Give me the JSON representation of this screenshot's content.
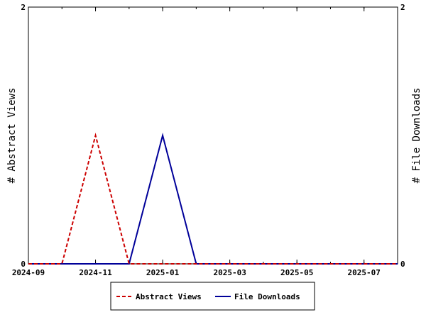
{
  "chart_data": {
    "type": "line",
    "title": "",
    "xlabel": "",
    "ylabel_left": "# Abstract Views",
    "ylabel_right": "# File Downloads",
    "x_range": [
      "2024-09",
      "2025-08"
    ],
    "x_ticks": [
      "2024-09",
      "2024-11",
      "2025-01",
      "2025-03",
      "2025-05",
      "2025-07"
    ],
    "months": [
      "2024-09",
      "2024-10",
      "2024-11",
      "2024-12",
      "2025-01",
      "2025-02",
      "2025-03",
      "2025-04",
      "2025-05",
      "2025-06",
      "2025-07",
      "2025-08"
    ],
    "ylim_left": [
      0,
      2
    ],
    "ylim_right": [
      0,
      2
    ],
    "y_ticks_left": [
      "0",
      "2"
    ],
    "y_ticks_right": [
      "0",
      "2"
    ],
    "grid": false,
    "legend_position": "bottom",
    "series": [
      {
        "name": "Abstract Views",
        "color": "#cc0000",
        "style": "dashed",
        "axis": "left",
        "values": [
          0,
          0,
          1,
          0,
          0,
          0,
          0,
          0,
          0,
          0,
          0,
          0
        ]
      },
      {
        "name": "File Downloads",
        "color": "#000099",
        "style": "solid",
        "axis": "right",
        "values": [
          0,
          0,
          0,
          0,
          1,
          0,
          0,
          0,
          0,
          0,
          0,
          0
        ]
      }
    ]
  }
}
